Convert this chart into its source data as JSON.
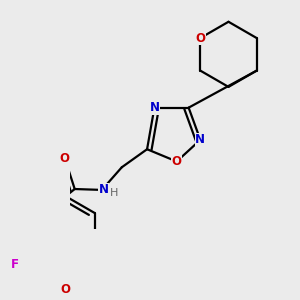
{
  "background_color": "#ebebeb",
  "atom_colors": {
    "C": "#000000",
    "N": "#0000cc",
    "O": "#cc0000",
    "F": "#cc00cc",
    "H": "#666666"
  },
  "figsize": [
    3.0,
    3.0
  ],
  "dpi": 100,
  "bond_lw": 1.6,
  "font_size": 8.5
}
